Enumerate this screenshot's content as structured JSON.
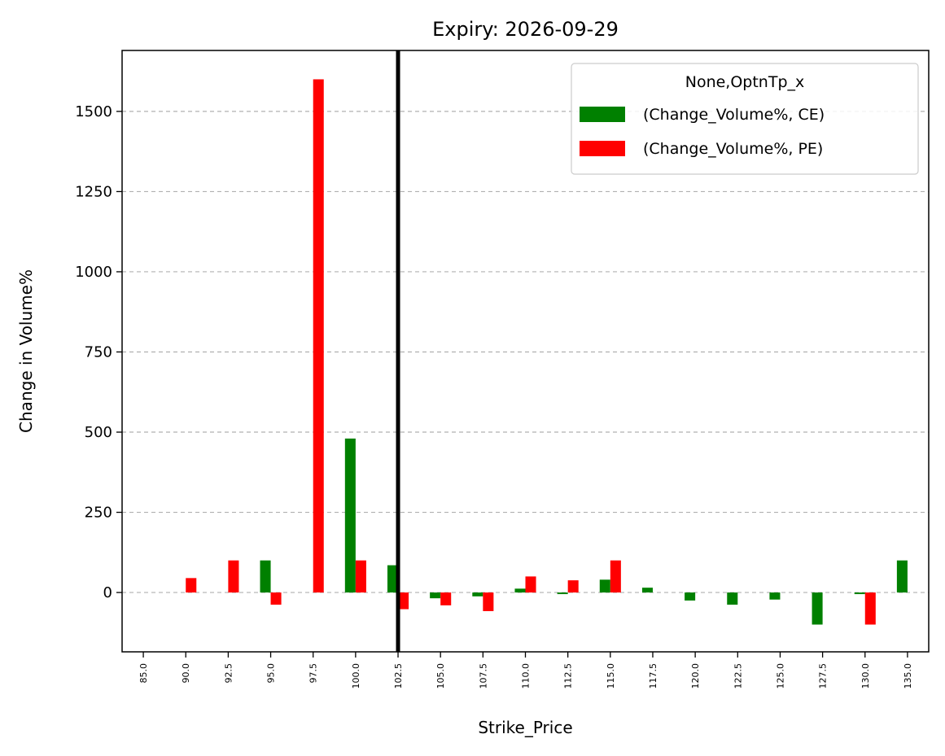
{
  "chart_data": {
    "type": "bar",
    "title": "Expiry: 2026-09-29",
    "xlabel": "Strike_Price",
    "ylabel": "Change in Volume%",
    "categories": [
      "85.0",
      "90.0",
      "92.5",
      "95.0",
      "97.5",
      "100.0",
      "102.5",
      "105.0",
      "107.5",
      "110.0",
      "112.5",
      "115.0",
      "117.5",
      "120.0",
      "122.5",
      "125.0",
      "127.5",
      "130.0",
      "135.0"
    ],
    "series": [
      {
        "name": "(Change_Volume%, CE)",
        "color": "#008000",
        "values": [
          0,
          0,
          0,
          100,
          0,
          480,
          85,
          -18,
          -12,
          12,
          -5,
          40,
          15,
          -25,
          -38,
          -22,
          -100,
          -5,
          100
        ]
      },
      {
        "name": "(Change_Volume%, PE)",
        "color": "#ff0000",
        "values": [
          0,
          45,
          100,
          -38,
          1600,
          100,
          -52,
          -40,
          -58,
          50,
          38,
          100,
          0,
          0,
          0,
          0,
          0,
          -100,
          0
        ]
      }
    ],
    "legend_title": "None,OptnTp_x",
    "legend_position": "upper right",
    "ylim": [
      -185,
      1690
    ],
    "yticks": [
      0,
      250,
      500,
      750,
      1000,
      1250,
      1500
    ],
    "grid": "y dashed",
    "vertical_line_at": "102.5",
    "vertical_line_color": "#000000"
  }
}
